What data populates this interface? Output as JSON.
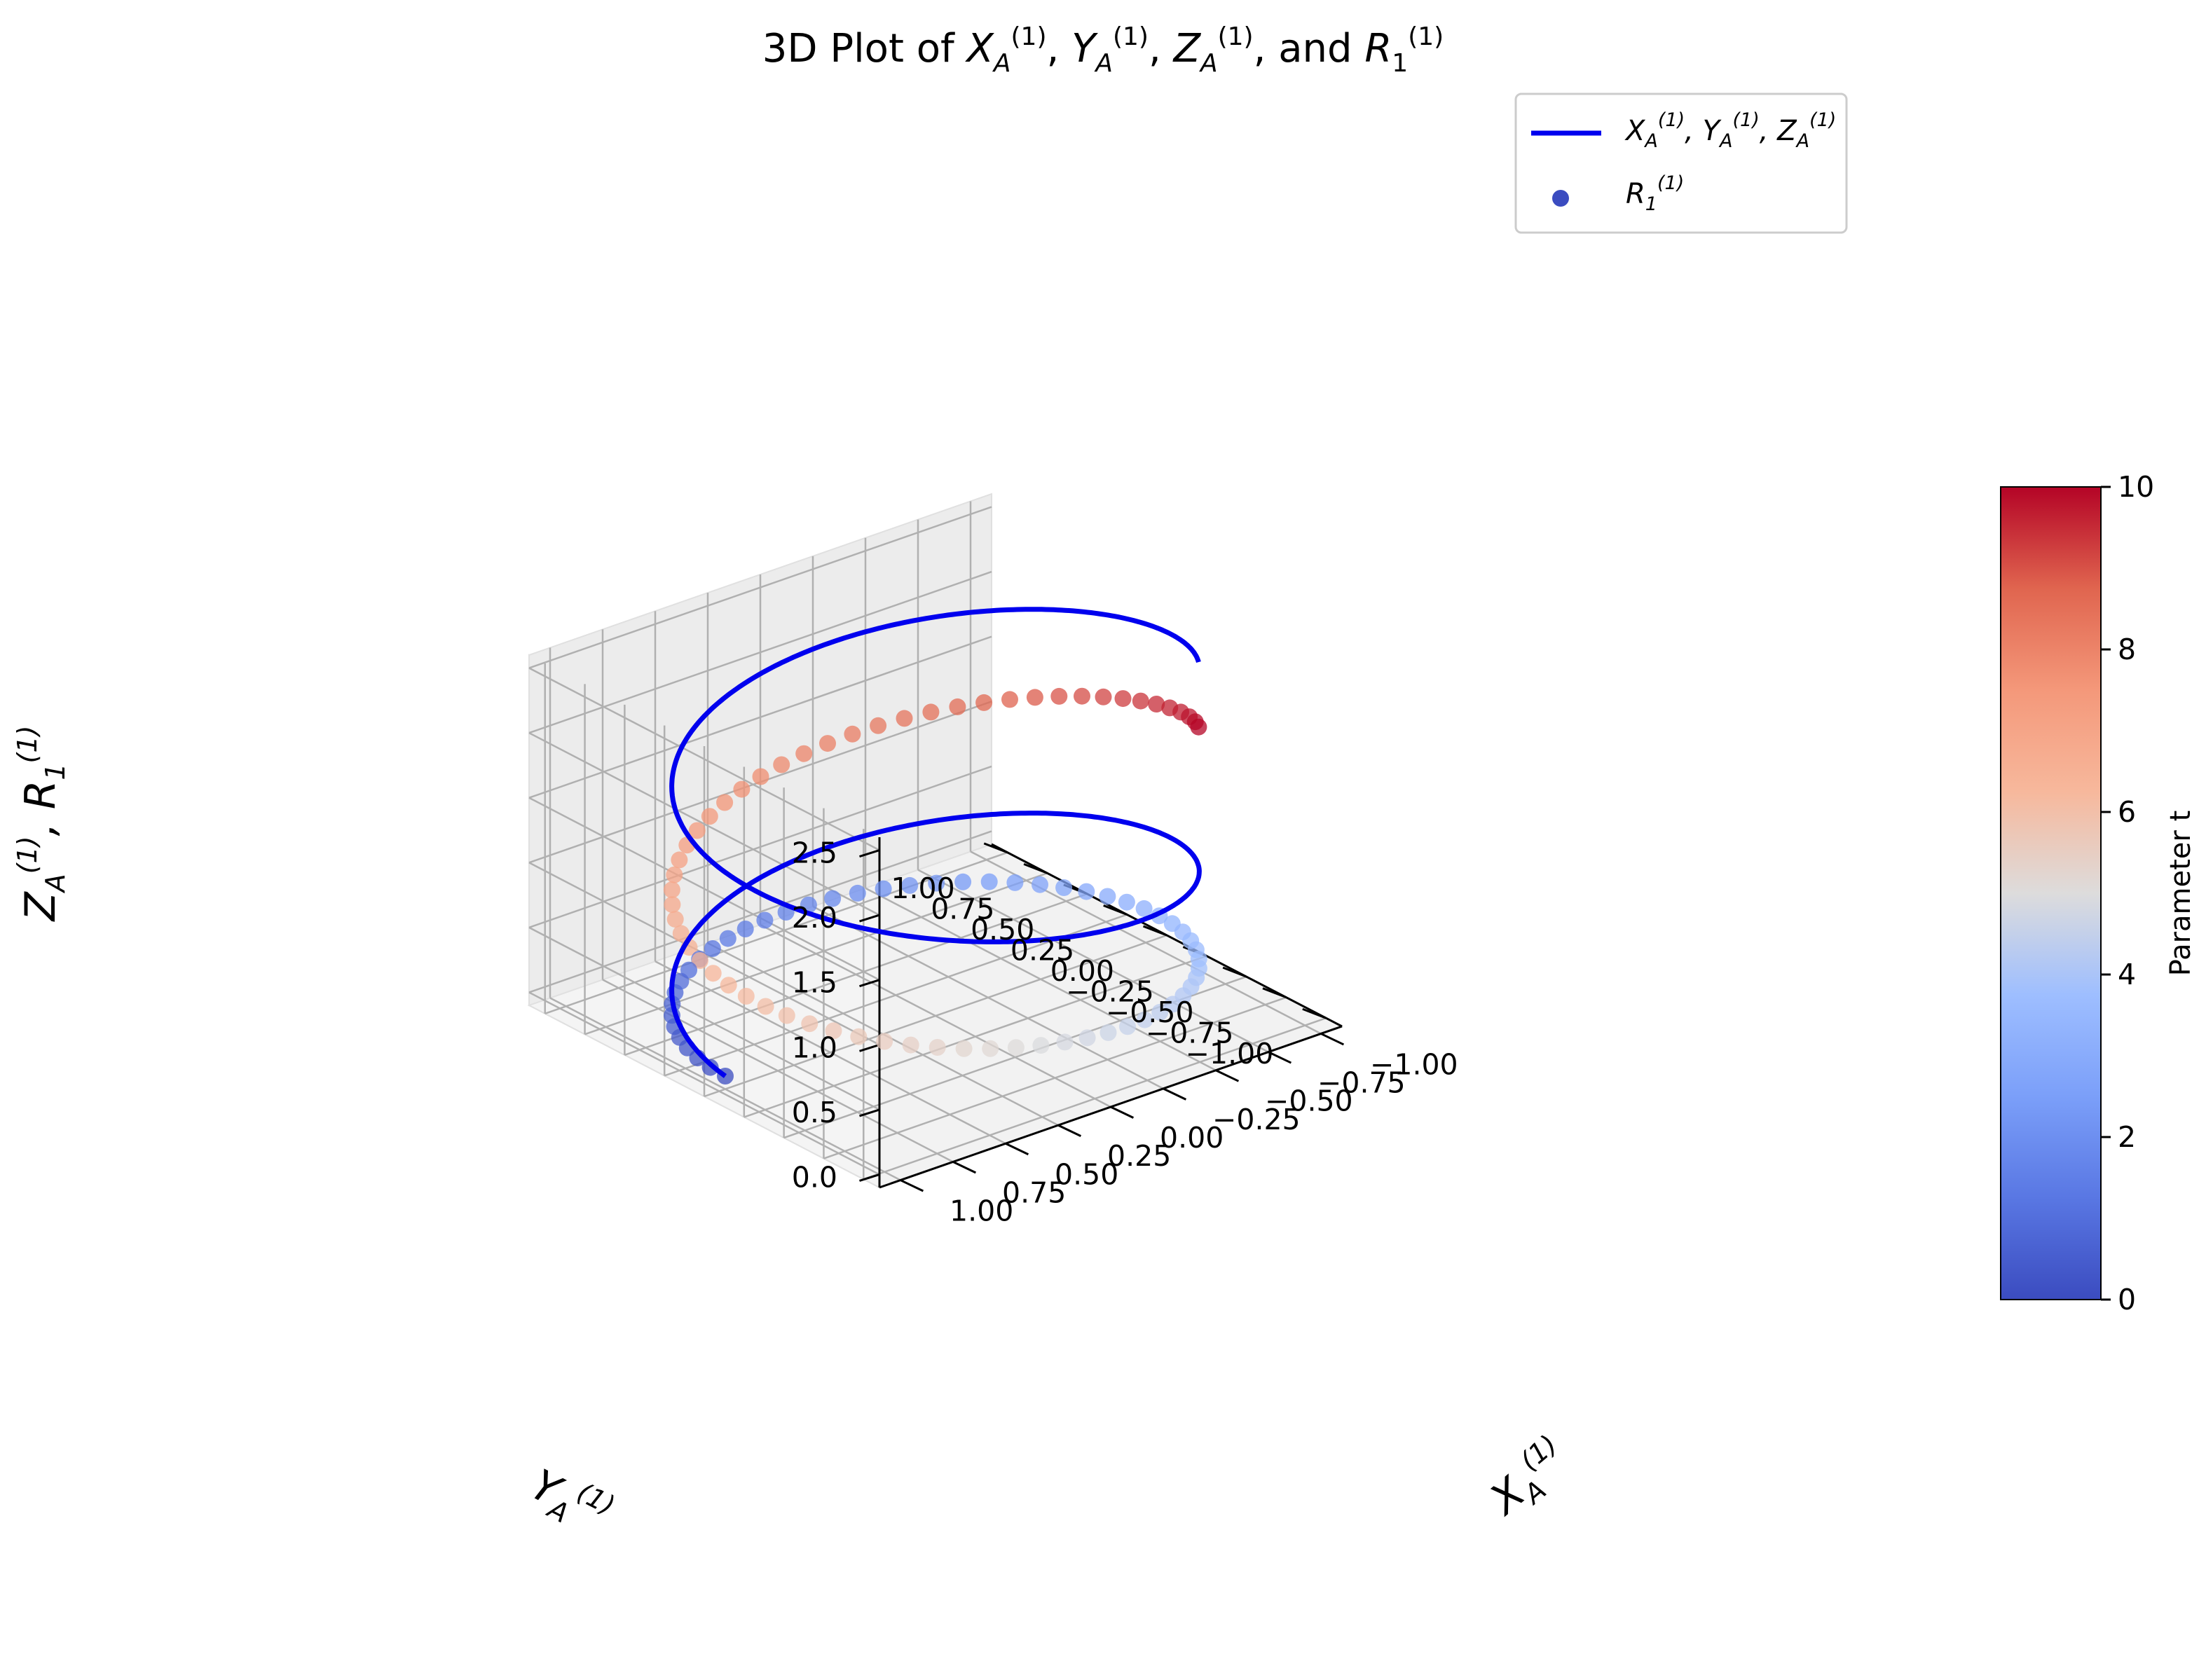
{
  "chart_data": {
    "type": "line3d+scatter3d",
    "title": "3D Plot of X_A^(1), Y_A^(1), Z_A^(1), and R_1^(1)",
    "xlabel": "X_A^(1)",
    "ylabel": "Y_A^(1)",
    "zlabel": "Z_A^(1), R_1^(1)",
    "xlim": [
      -1.1,
      1.1
    ],
    "ylim": [
      -1.1,
      1.1
    ],
    "zlim": [
      -0.1,
      2.6
    ],
    "xticks": [
      "−1.00",
      "−0.75",
      "−0.50",
      "−0.25",
      "0.00",
      "0.25",
      "0.50",
      "0.75",
      "1.00"
    ],
    "yticks": [
      "−1.00",
      "−0.75",
      "−0.50",
      "−0.25",
      "0.00",
      "0.25",
      "0.50",
      "0.75",
      "1.00"
    ],
    "zticks": [
      "0.0",
      "0.5",
      "1.0",
      "1.5",
      "2.0",
      "2.5"
    ],
    "grid": true,
    "legend": {
      "placement": "upper-right",
      "entries": [
        {
          "label": "X_A^(1), Y_A^(1), Z_A^(1)",
          "kind": "line",
          "color": "#0000ee"
        },
        {
          "label": "R_1^(1)",
          "kind": "point",
          "color": "#3b4cc0"
        }
      ]
    },
    "series": [
      {
        "name": "X_A^(1), Y_A^(1), Z_A^(1)",
        "kind": "helix-line",
        "color": "#0000ee",
        "t_range": [
          0,
          10
        ],
        "x": "cos(t)",
        "y": "sin(t)",
        "z": "t/4"
      },
      {
        "name": "R_1^(1)",
        "kind": "scatter-colored-by-t",
        "colormap": "coolwarm",
        "t_range": [
          0,
          10
        ],
        "points": 100,
        "x": "cos(t)",
        "y": "sin(t)",
        "z": "0 near t=0, rising to about 2.0 by t=10"
      }
    ],
    "colorbar": {
      "label": "Parameter t",
      "range": [
        0,
        10
      ],
      "ticks": [
        "0",
        "2",
        "4",
        "6",
        "8",
        "10"
      ],
      "colormap": "coolwarm"
    }
  }
}
